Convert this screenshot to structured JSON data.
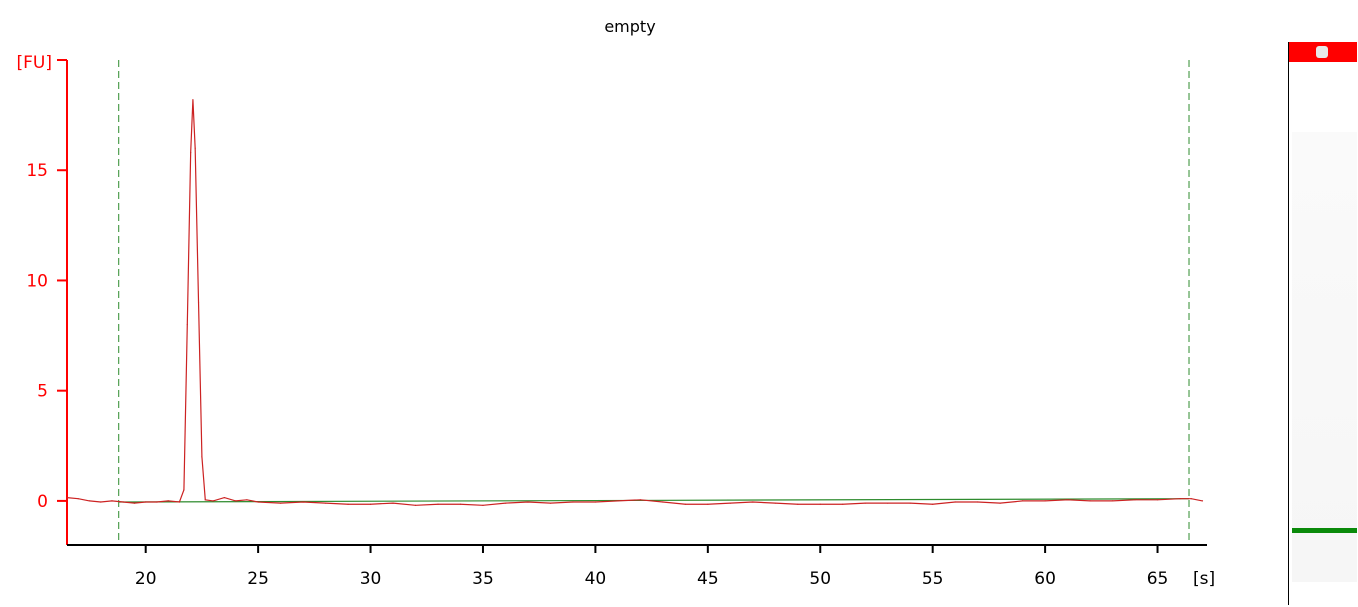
{
  "colors": {
    "signal": "#cc2222",
    "y_axis": "#ff0000",
    "x_axis": "#000000",
    "baseline": "#2e8b2e",
    "marker_lines": "#2e8b2e",
    "gel_upper_marker": "#ff0000",
    "gel_lower_marker": "#0a8a0a"
  },
  "chart_data": {
    "type": "line",
    "title": "empty",
    "xlabel": "[s]",
    "ylabel": "[FU]",
    "xlim": [
      16.5,
      67.2
    ],
    "ylim": [
      -2,
      20
    ],
    "x_ticks": [
      20,
      25,
      30,
      35,
      40,
      45,
      50,
      55,
      60,
      65
    ],
    "y_ticks": [
      0,
      5,
      10,
      15
    ],
    "grid": false,
    "marker_lines_x": [
      18.8,
      66.4
    ],
    "series": [
      {
        "points": [
          [
            16.5,
            0.15
          ],
          [
            17.0,
            0.1
          ],
          [
            17.5,
            0.0
          ],
          [
            18.0,
            -0.05
          ],
          [
            18.5,
            0.0
          ],
          [
            19.0,
            -0.05
          ],
          [
            19.5,
            -0.1
          ],
          [
            20.0,
            -0.05
          ],
          [
            20.5,
            -0.05
          ],
          [
            21.0,
            0.0
          ],
          [
            21.5,
            -0.05
          ],
          [
            21.7,
            0.5
          ],
          [
            21.85,
            8.0
          ],
          [
            22.0,
            15.8
          ],
          [
            22.1,
            18.2
          ],
          [
            22.2,
            16.0
          ],
          [
            22.35,
            9.0
          ],
          [
            22.5,
            2.0
          ],
          [
            22.65,
            0.05
          ],
          [
            23.0,
            0.0
          ],
          [
            23.5,
            0.15
          ],
          [
            24.0,
            0.0
          ],
          [
            24.5,
            0.05
          ],
          [
            25.0,
            -0.05
          ],
          [
            26.0,
            -0.1
          ],
          [
            27.0,
            -0.05
          ],
          [
            28.0,
            -0.1
          ],
          [
            29.0,
            -0.15
          ],
          [
            30.0,
            -0.15
          ],
          [
            31.0,
            -0.1
          ],
          [
            32.0,
            -0.2
          ],
          [
            33.0,
            -0.15
          ],
          [
            34.0,
            -0.15
          ],
          [
            35.0,
            -0.2
          ],
          [
            36.0,
            -0.1
          ],
          [
            37.0,
            -0.05
          ],
          [
            38.0,
            -0.1
          ],
          [
            39.0,
            -0.05
          ],
          [
            40.0,
            -0.05
          ],
          [
            41.0,
            0.0
          ],
          [
            42.0,
            0.05
          ],
          [
            43.0,
            -0.05
          ],
          [
            44.0,
            -0.15
          ],
          [
            45.0,
            -0.15
          ],
          [
            46.0,
            -0.1
          ],
          [
            47.0,
            -0.05
          ],
          [
            48.0,
            -0.1
          ],
          [
            49.0,
            -0.15
          ],
          [
            50.0,
            -0.15
          ],
          [
            51.0,
            -0.15
          ],
          [
            52.0,
            -0.1
          ],
          [
            53.0,
            -0.1
          ],
          [
            54.0,
            -0.1
          ],
          [
            55.0,
            -0.15
          ],
          [
            56.0,
            -0.05
          ],
          [
            57.0,
            -0.05
          ],
          [
            58.0,
            -0.1
          ],
          [
            59.0,
            0.0
          ],
          [
            60.0,
            0.0
          ],
          [
            61.0,
            0.05
          ],
          [
            62.0,
            0.0
          ],
          [
            63.0,
            0.0
          ],
          [
            64.0,
            0.05
          ],
          [
            65.0,
            0.05
          ],
          [
            66.0,
            0.1
          ],
          [
            66.5,
            0.1
          ],
          [
            67.0,
            0.0
          ]
        ]
      },
      {
        "points": [
          [
            18.8,
            -0.05
          ],
          [
            66.4,
            0.1
          ]
        ]
      }
    ]
  }
}
